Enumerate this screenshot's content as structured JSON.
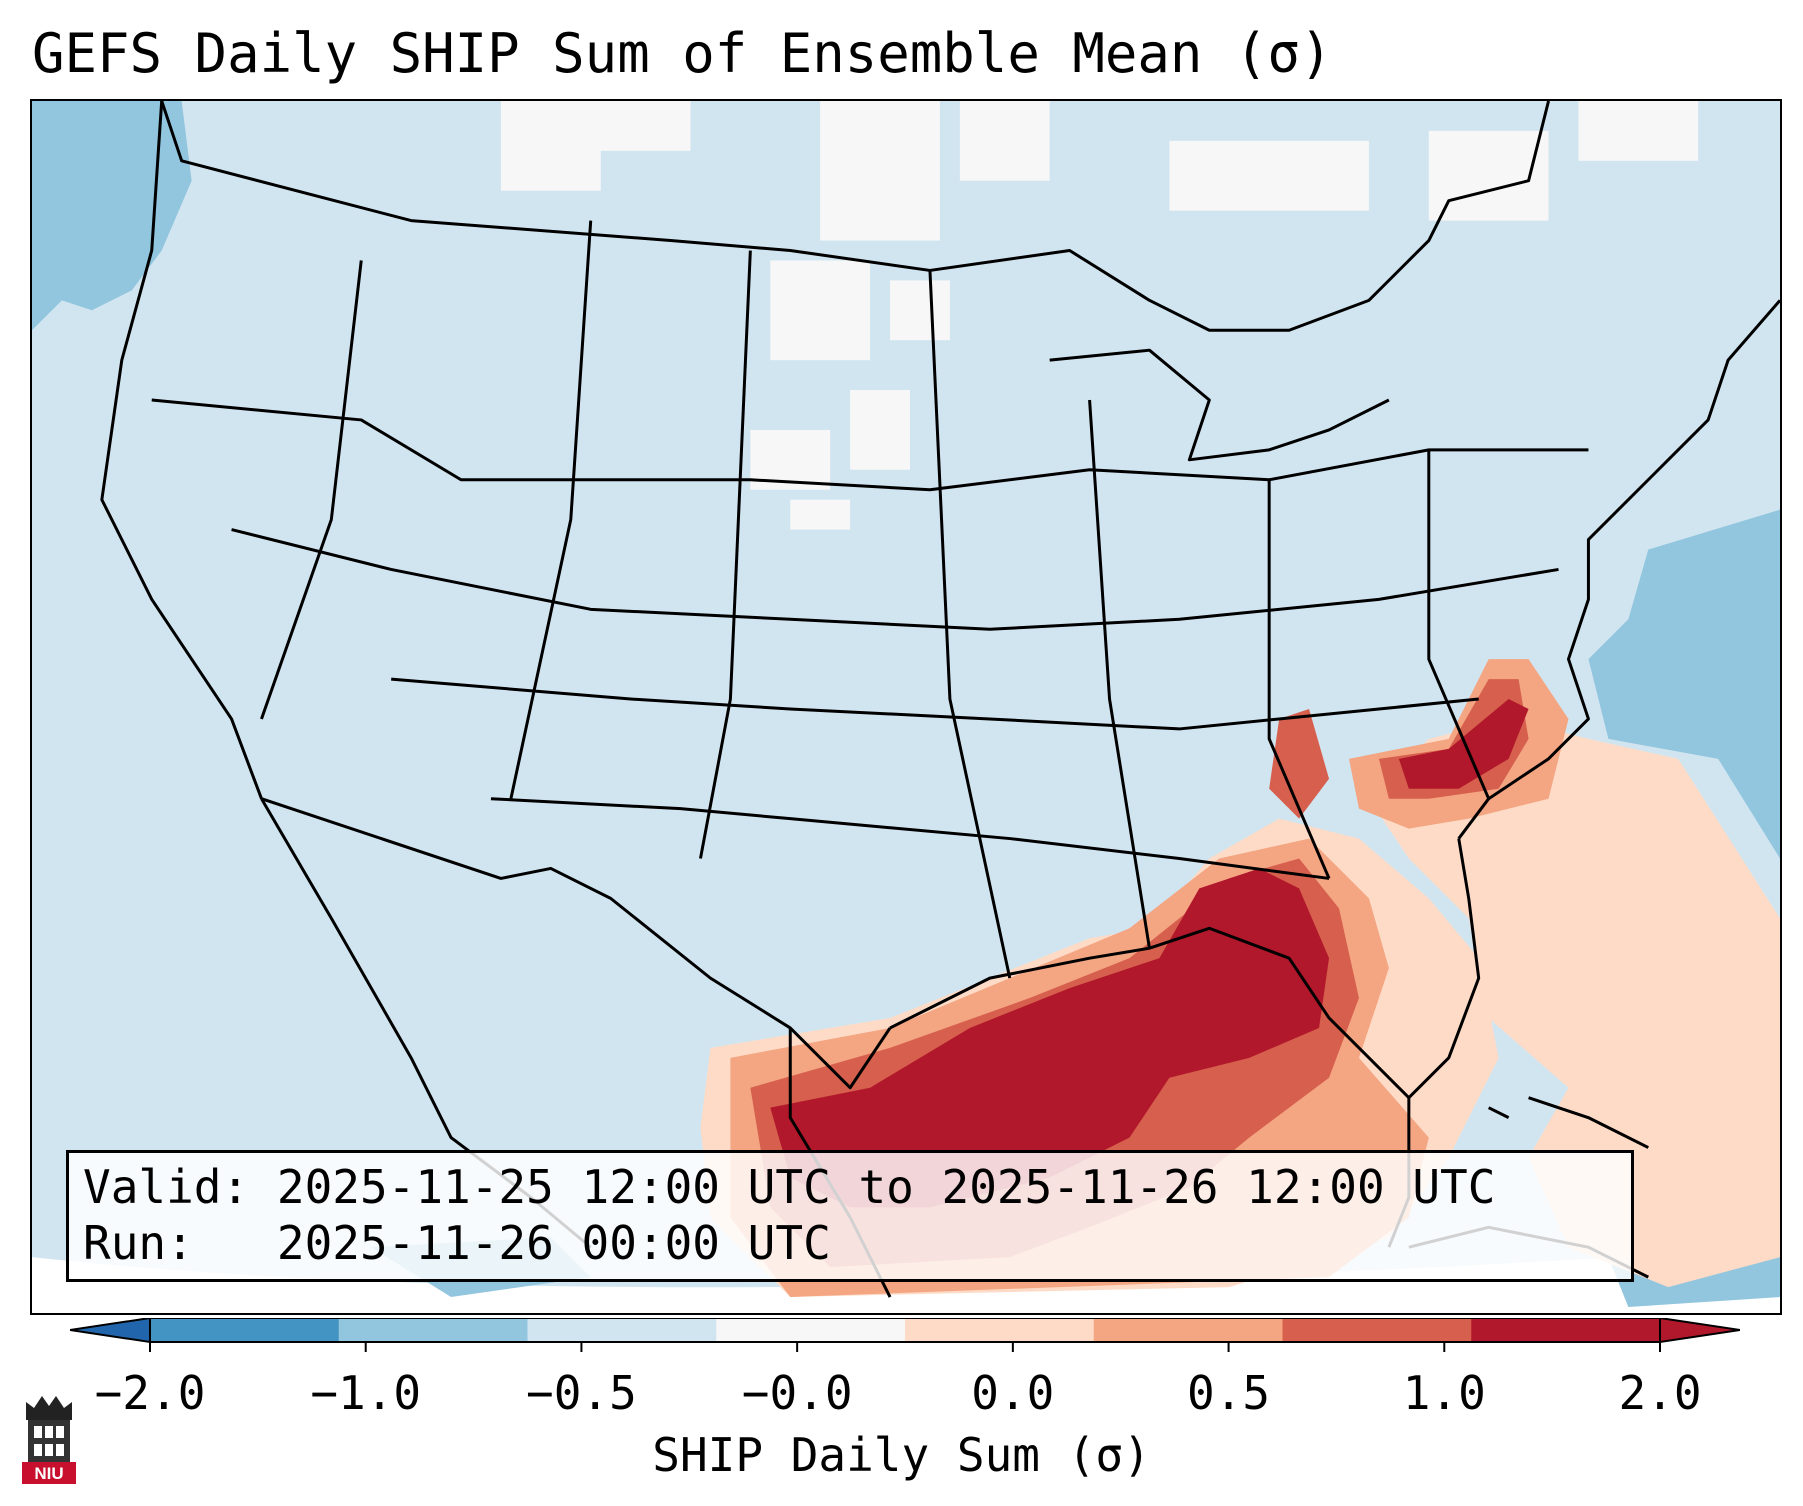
{
  "title": "GEFS Daily SHIP Sum of Ensemble Mean (σ)",
  "info": {
    "valid_label": "Valid:",
    "valid_value": "2025-11-25 12:00 UTC to 2025-11-26 12:00 UTC",
    "run_label": "Run:",
    "run_value": "2025-11-26 00:00 UTC"
  },
  "colorbar": {
    "label": "SHIP Daily Sum (σ)",
    "ticks": [
      "−2.0",
      "−1.0",
      "−0.5",
      "−0.0",
      "0.0",
      "0.5",
      "1.0",
      "2.0"
    ],
    "bin_colors": [
      "#4393c3",
      "#92c5de",
      "#d1e5f0",
      "#f7f7f7",
      "#fddbc7",
      "#f4a582",
      "#d6604d",
      "#b2182b"
    ],
    "under_color": "#2166ac",
    "over_color": "#b2182b",
    "extend": "both"
  },
  "logo": {
    "text": "NIU",
    "color": "#c8102e"
  }
}
